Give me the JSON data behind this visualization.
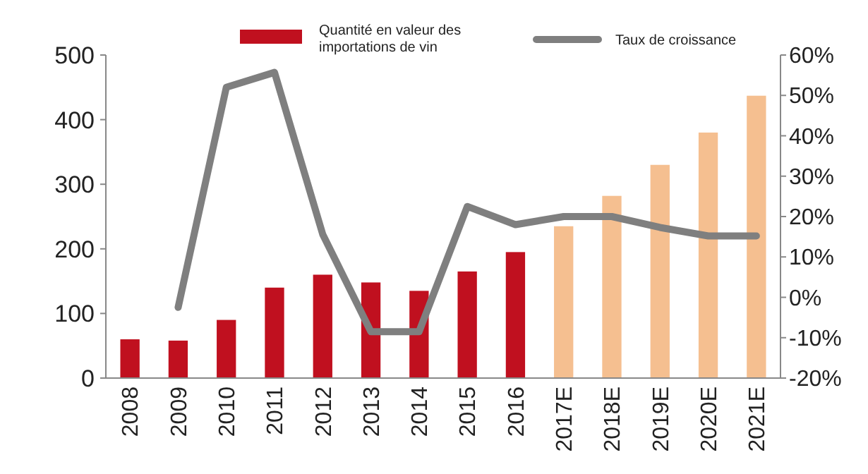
{
  "chart_data": {
    "type": "bar",
    "categories": [
      "2008",
      "2009",
      "2010",
      "2011",
      "2012",
      "2013",
      "2014",
      "2015",
      "2016",
      "2017E",
      "2018E",
      "2019E",
      "2020E",
      "2021E"
    ],
    "series": [
      {
        "name": "Quantité en valeur des importations de vin",
        "color": "#c0101f",
        "colors": [
          "#c0101f",
          "#c0101f",
          "#c0101f",
          "#c0101f",
          "#c0101f",
          "#c0101f",
          "#c0101f",
          "#c0101f",
          "#c0101f",
          "#f5bf90",
          "#f5bf90",
          "#f5bf90",
          "#f5bf90",
          "#f5bf90"
        ],
        "values": [
          60,
          58,
          90,
          140,
          160,
          148,
          135,
          165,
          195,
          235,
          282,
          330,
          380,
          437
        ]
      },
      {
        "name": "Taux de croissance",
        "type": "line",
        "axis": "y2",
        "color": "#7f7f7f",
        "values": [
          null,
          -2.5,
          52,
          55.7,
          15.6,
          -8.5,
          -8.5,
          22.5,
          18,
          20,
          20,
          17.3,
          15.2,
          15.2
        ]
      }
    ],
    "ylim": [
      0,
      500
    ],
    "yticks": [
      0,
      100,
      200,
      300,
      400,
      500
    ],
    "y2lim": [
      -20,
      60
    ],
    "y2ticks": [
      {
        "value": -20,
        "label": "-20%"
      },
      {
        "value": -10,
        "label": "-10%"
      },
      {
        "value": 0,
        "label": "0%"
      },
      {
        "value": 10,
        "label": "10%"
      },
      {
        "value": 20,
        "label": "20%"
      },
      {
        "value": 30,
        "label": "30%"
      },
      {
        "value": 40,
        "label": "40%"
      },
      {
        "value": 50,
        "label": "50%"
      },
      {
        "value": 60,
        "label": "60%"
      }
    ],
    "grid": false,
    "legend": "top",
    "marker": "none",
    "line_style": "solid"
  }
}
